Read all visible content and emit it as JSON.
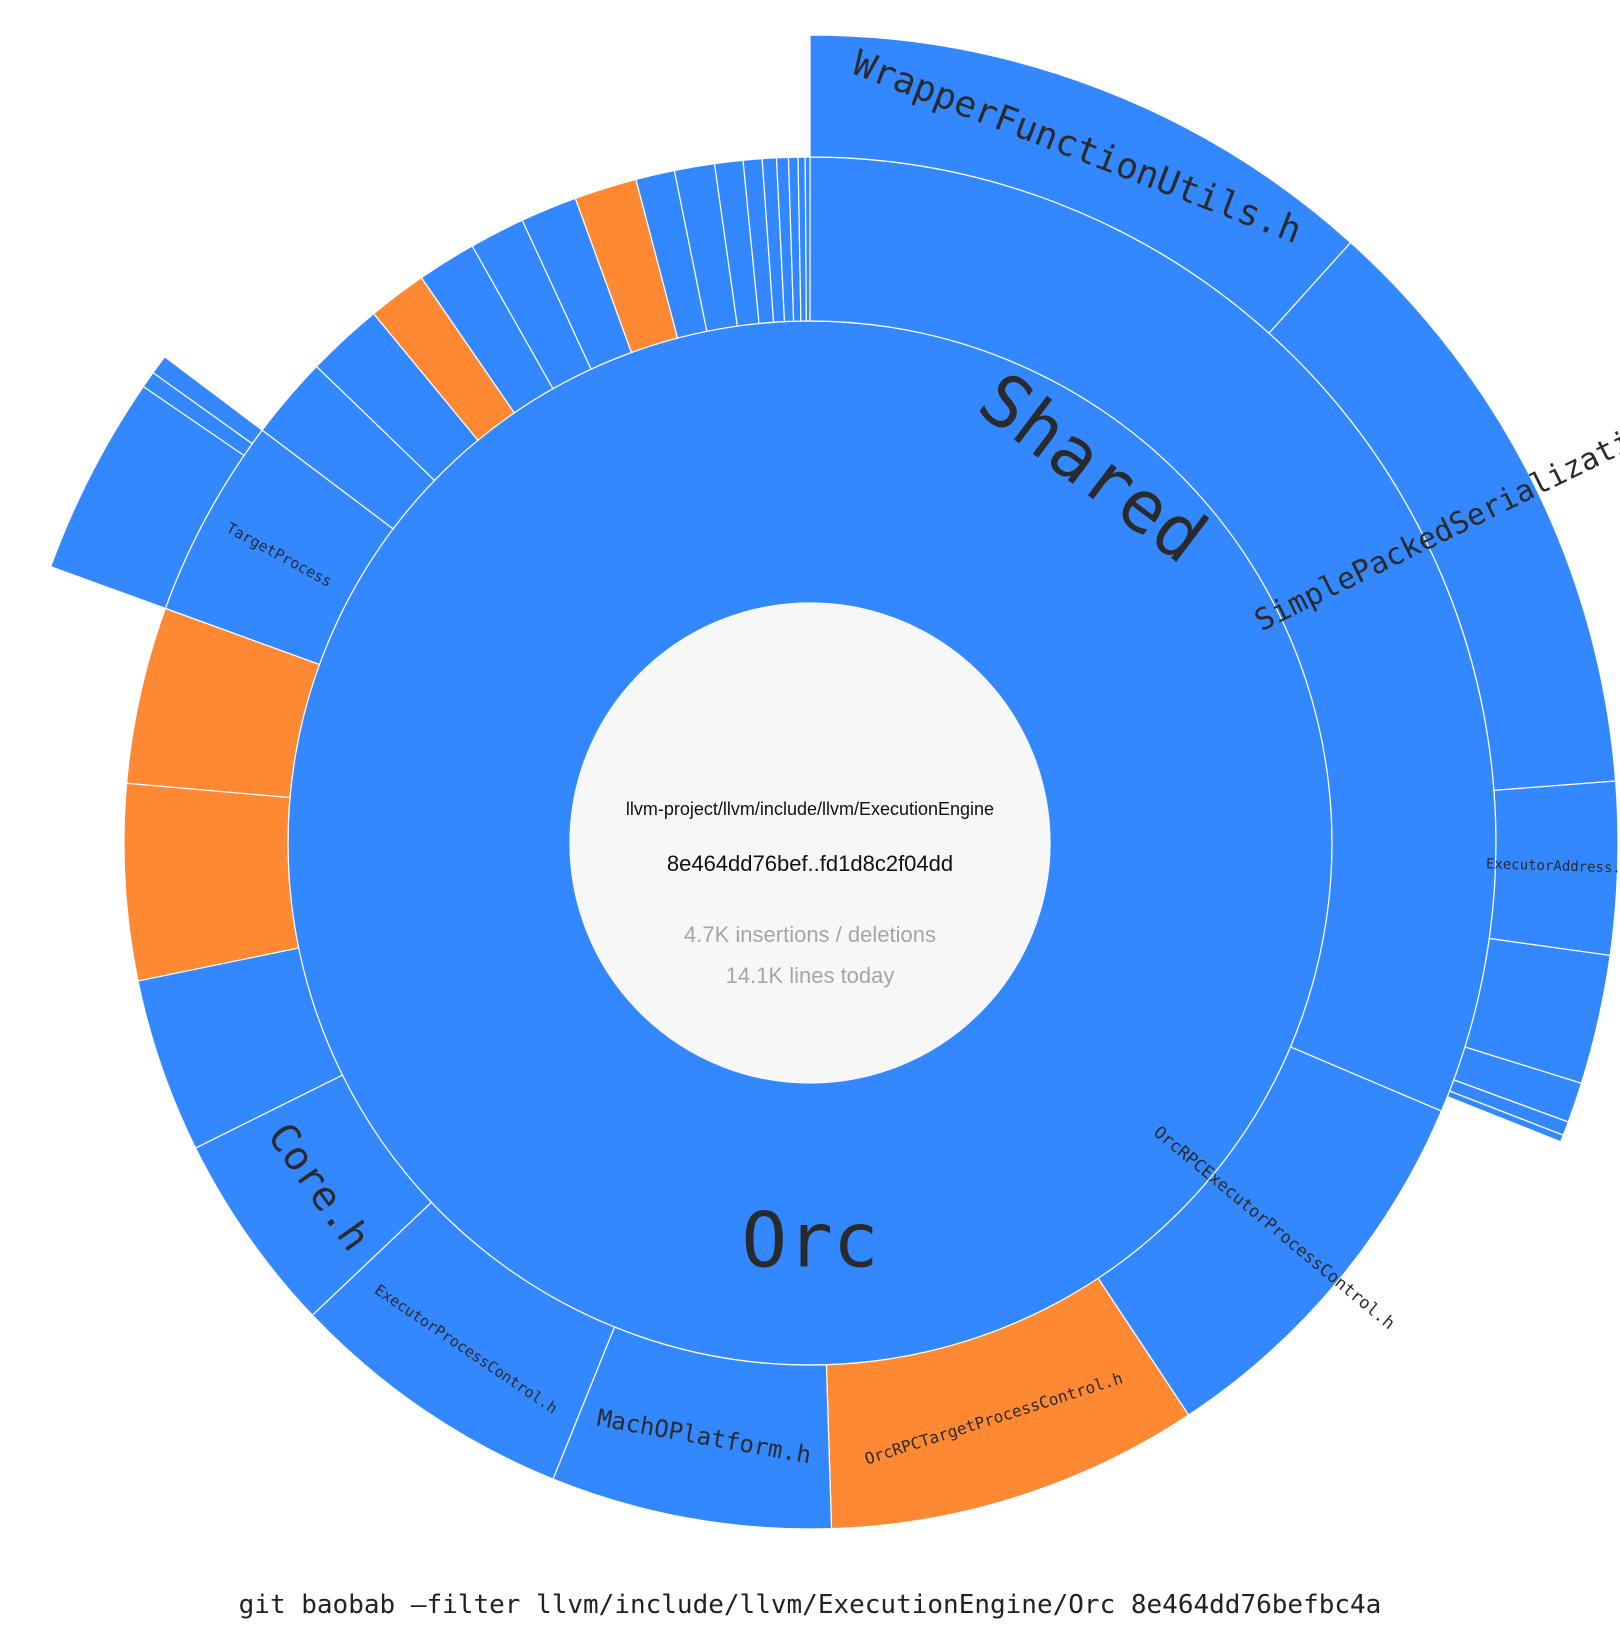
{
  "colors": {
    "unchanged": "#3388ff",
    "changed": "#ff8833",
    "center": "#f7f7f7"
  },
  "center": {
    "path": "llvm-project/llvm/include/llvm/ExecutionEngine",
    "range": "8e464dd76bef..fd1d8c2f04dd",
    "changes": "4.7K insertions / deletions",
    "lines": "14.1K lines today"
  },
  "command": "git baobab —filter llvm/include/llvm/ExecutionEngine/Orc 8e464dd76befbc4a",
  "tree": {
    "name": "Orc",
    "changed": false,
    "depth": 1,
    "children": [
      {
        "name": "Shared",
        "changed": false,
        "depth": 2,
        "start": 0.0,
        "end": 113.0,
        "children": [
          {
            "name": "WrapperFunctionUtils.h",
            "changed": false,
            "start": 0.0,
            "end": 42.0
          },
          {
            "name": "SimplePackedSerialization.h",
            "changed": false,
            "start": 42.0,
            "end": 85.6
          },
          {
            "name": "ExecutorAddress.h",
            "changed": false,
            "start": 85.6,
            "end": 98.0
          },
          {
            "name": "",
            "changed": false,
            "start": 98.0,
            "end": 107.3
          },
          {
            "name": "",
            "changed": false,
            "start": 107.3,
            "end": 110.2
          },
          {
            "name": "",
            "changed": false,
            "start": 110.2,
            "end": 111.2
          },
          {
            "name": "",
            "changed": false,
            "start": 111.2,
            "end": 111.7
          }
        ]
      },
      {
        "name": "OrcRPCExecutorProcessControl.h",
        "changed": false,
        "depth": 2,
        "start": 113.0,
        "end": 146.5
      },
      {
        "name": "OrcRPCTargetProcessControl.h",
        "changed": true,
        "depth": 2,
        "start": 146.5,
        "end": 178.2
      },
      {
        "name": "MachOPlatform.h",
        "changed": false,
        "depth": 2,
        "start": 178.2,
        "end": 202.0
      },
      {
        "name": "ExecutorProcessControl.h",
        "changed": false,
        "depth": 2,
        "start": 202.0,
        "end": 226.5
      },
      {
        "name": "Core.h",
        "changed": false,
        "depth": 2,
        "start": 226.5,
        "end": 243.6
      },
      {
        "name": "",
        "changed": false,
        "depth": 2,
        "start": 243.6,
        "end": 258.4
      },
      {
        "name": "",
        "changed": true,
        "depth": 2,
        "start": 258.4,
        "end": 275.0
      },
      {
        "name": "",
        "changed": true,
        "depth": 2,
        "start": 275.0,
        "end": 290.0
      },
      {
        "name": "TargetProcess",
        "changed": false,
        "depth": 2,
        "start": 290.0,
        "end": 307.0,
        "children": [
          {
            "name": "",
            "changed": false,
            "start": 290.0,
            "end": 304.4
          },
          {
            "name": "",
            "changed": false,
            "start": 304.4,
            "end": 305.6
          },
          {
            "name": "",
            "changed": false,
            "start": 305.6,
            "end": 307.0
          }
        ]
      },
      {
        "name": "",
        "changed": false,
        "depth": 2,
        "start": 307.0,
        "end": 314.0
      },
      {
        "name": "",
        "changed": false,
        "depth": 2,
        "start": 314.0,
        "end": 320.5
      },
      {
        "name": "",
        "changed": true,
        "depth": 2,
        "start": 320.5,
        "end": 325.5
      },
      {
        "name": "",
        "changed": false,
        "depth": 2,
        "start": 325.5,
        "end": 330.5
      },
      {
        "name": "",
        "changed": false,
        "depth": 2,
        "start": 330.5,
        "end": 335.2
      },
      {
        "name": "",
        "changed": false,
        "depth": 2,
        "start": 335.2,
        "end": 340.0
      },
      {
        "name": "",
        "changed": true,
        "depth": 2,
        "start": 340.0,
        "end": 345.3
      },
      {
        "name": "",
        "changed": false,
        "depth": 2,
        "start": 345.3,
        "end": 348.6
      },
      {
        "name": "",
        "changed": false,
        "depth": 2,
        "start": 348.6,
        "end": 352.0
      },
      {
        "name": "",
        "changed": false,
        "depth": 2,
        "start": 352.0,
        "end": 354.4
      },
      {
        "name": "",
        "changed": false,
        "depth": 2,
        "start": 354.4,
        "end": 356.0
      },
      {
        "name": "",
        "changed": false,
        "depth": 2,
        "start": 356.0,
        "end": 357.2
      },
      {
        "name": "",
        "changed": false,
        "depth": 2,
        "start": 357.2,
        "end": 358.2
      },
      {
        "name": "",
        "changed": false,
        "depth": 2,
        "start": 358.2,
        "end": 359.0
      },
      {
        "name": "",
        "changed": false,
        "depth": 2,
        "start": 359.0,
        "end": 359.6
      },
      {
        "name": "",
        "changed": false,
        "depth": 2,
        "start": 359.6,
        "end": 360.0
      }
    ]
  }
}
